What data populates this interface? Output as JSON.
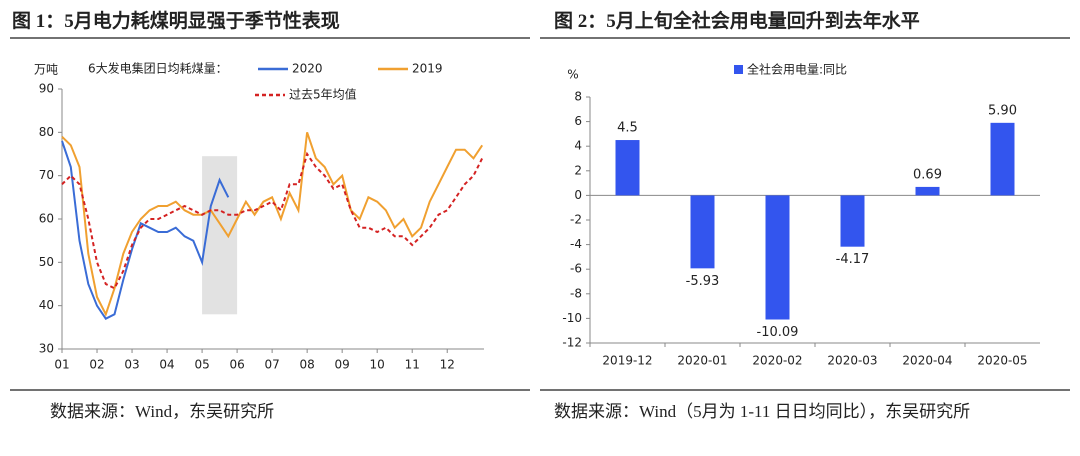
{
  "chart_data": [
    {
      "type": "line",
      "title": "图 1：5月电力耗煤明显强于季节性表现",
      "source": "数据来源：Wind，东吴研究所",
      "y_label": "万吨",
      "legend_title": "6大发电集团日均耗煤量：",
      "x": [
        1,
        1.25,
        1.5,
        1.75,
        2,
        2.25,
        2.5,
        2.75,
        3,
        3.25,
        3.5,
        3.75,
        4,
        4.25,
        4.5,
        4.75,
        5,
        5.25,
        5.5,
        5.75,
        6,
        6.25,
        6.5,
        6.75,
        7,
        7.25,
        7.5,
        7.75,
        8,
        8.25,
        8.5,
        8.75,
        9,
        9.25,
        9.5,
        9.75,
        10,
        10.25,
        10.5,
        10.75,
        11,
        11.25,
        11.5,
        11.75,
        12,
        12.25,
        12.5,
        12.75,
        13
      ],
      "xlim": [
        1,
        13.05
      ],
      "xticks": [
        {
          "value": 1,
          "label": "01"
        },
        {
          "value": 2,
          "label": "02"
        },
        {
          "value": 3,
          "label": "03"
        },
        {
          "value": 4,
          "label": "04"
        },
        {
          "value": 5,
          "label": "05"
        },
        {
          "value": 6,
          "label": "06"
        },
        {
          "value": 7,
          "label": "07"
        },
        {
          "value": 8,
          "label": "08"
        },
        {
          "value": 9,
          "label": "09"
        },
        {
          "value": 10,
          "label": "10"
        },
        {
          "value": 11,
          "label": "11"
        },
        {
          "value": 12,
          "label": "12"
        }
      ],
      "ylim": [
        30,
        90
      ],
      "yticks": [
        30,
        40,
        50,
        60,
        70,
        80,
        90
      ],
      "highlight": {
        "x": [
          5,
          6
        ],
        "y": [
          38,
          74.5
        ]
      },
      "series": [
        {
          "name": "2020",
          "color": "#3a6cd6",
          "dashed": false,
          "values": [
            78,
            72,
            55,
            45,
            40,
            37,
            38,
            46,
            53,
            59,
            58,
            57,
            57,
            58,
            56,
            55,
            50,
            63,
            69,
            65,
            null,
            null,
            null,
            null,
            null,
            null,
            null,
            null,
            null,
            null,
            null,
            null,
            null,
            null,
            null,
            null,
            null,
            null,
            null,
            null,
            null,
            null,
            null,
            null,
            null,
            null,
            null,
            null,
            null
          ]
        },
        {
          "name": "2019",
          "color": "#f0a030",
          "dashed": false,
          "values": [
            79,
            77,
            72,
            52,
            42,
            38,
            44,
            52,
            57,
            60,
            62,
            63,
            63,
            64,
            62,
            61,
            61,
            62,
            59,
            56,
            60,
            64,
            61,
            64,
            65,
            60,
            66,
            62,
            80,
            74,
            72,
            68,
            70,
            62,
            60,
            65,
            64,
            62,
            58,
            60,
            56,
            58,
            64,
            68,
            72,
            76,
            76,
            74,
            77
          ]
        },
        {
          "name": "过去5年均值",
          "color": "#d42222",
          "dashed": true,
          "values": [
            68,
            70,
            68,
            60,
            50,
            45,
            44,
            48,
            54,
            58,
            60,
            60,
            61,
            62,
            63,
            62,
            61,
            62,
            62,
            61,
            61,
            62,
            62,
            63,
            64,
            62,
            68,
            68,
            75,
            72,
            70,
            67,
            68,
            62,
            58,
            58,
            57,
            58,
            56,
            56,
            54,
            56,
            58,
            61,
            62,
            65,
            68,
            70,
            74
          ]
        }
      ]
    },
    {
      "type": "bar",
      "title": "图 2：5月上旬全社会用电量回升到去年水平",
      "source": "数据来源：Wind（5月为 1-11 日日均同比），东吴研究所",
      "y_label": "%",
      "categories": [
        "2019-12",
        "2020-01",
        "2020-02",
        "2020-03",
        "2020-04",
        "2020-05"
      ],
      "series": [
        {
          "name": "全社会用电量:同比",
          "color": "#3355ee",
          "values": [
            4.5,
            -5.93,
            -10.09,
            -4.17,
            0.69,
            5.9
          ],
          "value_labels": [
            "4.5",
            "-5.93",
            "-10.09",
            "-4.17",
            "0.69",
            "5.90"
          ]
        }
      ],
      "ylim": [
        -12,
        8
      ],
      "yticks": [
        -12,
        -10,
        -8,
        -6,
        -4,
        -2,
        0,
        2,
        4,
        6,
        8
      ]
    }
  ]
}
